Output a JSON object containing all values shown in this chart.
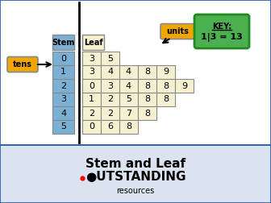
{
  "stem_values": [
    "0",
    "1",
    "2",
    "3",
    "4",
    "5"
  ],
  "stem_color": "#7bafd4",
  "leaf_color": "#f5f0d0",
  "gold_color": "#f0a500",
  "green_color": "#4caf50",
  "stem_header": "Stem",
  "leaf_header": "Leaf",
  "units_label": "units",
  "tens_label": "tens",
  "title": "Stem and Leaf",
  "leaf_data": [
    [
      "3",
      "5"
    ],
    [
      "3",
      "4",
      "4",
      "8",
      "9"
    ],
    [
      "0",
      "3",
      "4",
      "8",
      "8",
      "9"
    ],
    [
      "1",
      "2",
      "5",
      "8",
      "8"
    ],
    [
      "2",
      "2",
      "7",
      "8"
    ],
    [
      "0",
      "6",
      "8"
    ]
  ],
  "bottom_bg": "#dce3f0",
  "outer_border": "#2255aa"
}
